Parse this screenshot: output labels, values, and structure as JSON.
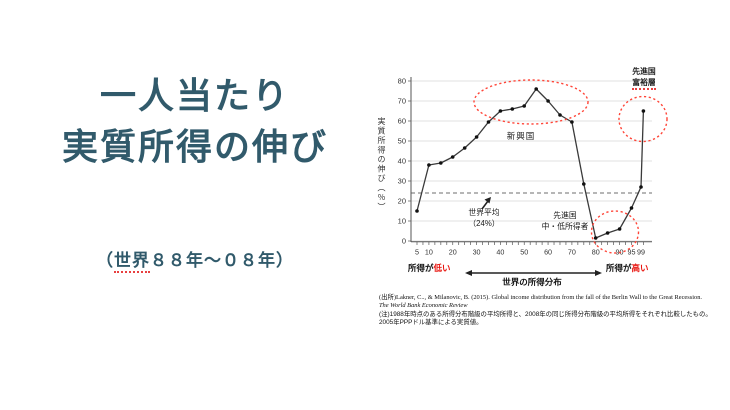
{
  "colors": {
    "title": "#315a6b",
    "red": "#e8120c",
    "ellipse": "#ff4538",
    "line": "#3a3a3a",
    "grid": "#d9d9d9",
    "avg_line": "#8a8a8a"
  },
  "slide": {
    "title_line1": "一人当たり",
    "title_line2": "実質所得の伸び",
    "subtitle_open": "（",
    "subtitle_underlined": "世界",
    "subtitle_rest": "８８年〜０８年）"
  },
  "chart": {
    "y_axis_label": "実質所得の伸び（％）",
    "annotations": {
      "emerging": "新興国",
      "world_avg_line1": "世界平均",
      "world_avg_line2": "（24%）",
      "dev_mid_line1": "先進国",
      "dev_mid_line2": "中・低所得者",
      "dev_rich_line1": "先進国",
      "dev_rich_line2": "富裕層"
    },
    "x_axis": {
      "left_label_black": "所得が",
      "left_label_red": "低い",
      "right_label_black": "所得が",
      "right_label_red": "高い",
      "center_label": "世界の所得分布"
    },
    "source_line1": "(出所)Lakner, C.., & Milanovic, B. (2015). Global income distribution from the fall of the Berlin Wall to the Great Recession. ",
    "source_journal": "The World Bank Economic Review",
    "note": "(注)1988年時点のある所得分布階級の平均所得と、2008年の同じ所得分布階級の平均所得をそれぞれ比較したもの。2005年PPPドル基準による実質値。"
  },
  "chart_data": {
    "type": "line",
    "title": "一人当たり実質所得の伸び（世界８８年〜０８年）",
    "xlabel": "世界の所得分布",
    "ylabel": "実質所得の伸び（％）",
    "x": [
      5,
      10,
      15,
      20,
      25,
      30,
      35,
      40,
      45,
      50,
      55,
      60,
      65,
      70,
      75,
      80,
      85,
      90,
      95,
      99,
      100
    ],
    "values": [
      15,
      38,
      39,
      42,
      46.5,
      52,
      59.5,
      65,
      66,
      67.5,
      76,
      70,
      63,
      59.5,
      28.5,
      1.5,
      4,
      6,
      16.5,
      27,
      65
    ],
    "x_tick_labels": [
      5,
      10,
      20,
      30,
      40,
      50,
      60,
      70,
      80,
      90,
      95,
      99
    ],
    "y_ticks": [
      0,
      10,
      20,
      30,
      40,
      50,
      60,
      70,
      80
    ],
    "ylim": [
      0,
      80
    ],
    "xlim": [
      5,
      100
    ],
    "world_average": 24,
    "grid": true,
    "legend": "none",
    "annotations": [
      "新興国",
      "世界平均（24%）",
      "先進国 中・低所得者",
      "先進国 富裕層"
    ]
  }
}
